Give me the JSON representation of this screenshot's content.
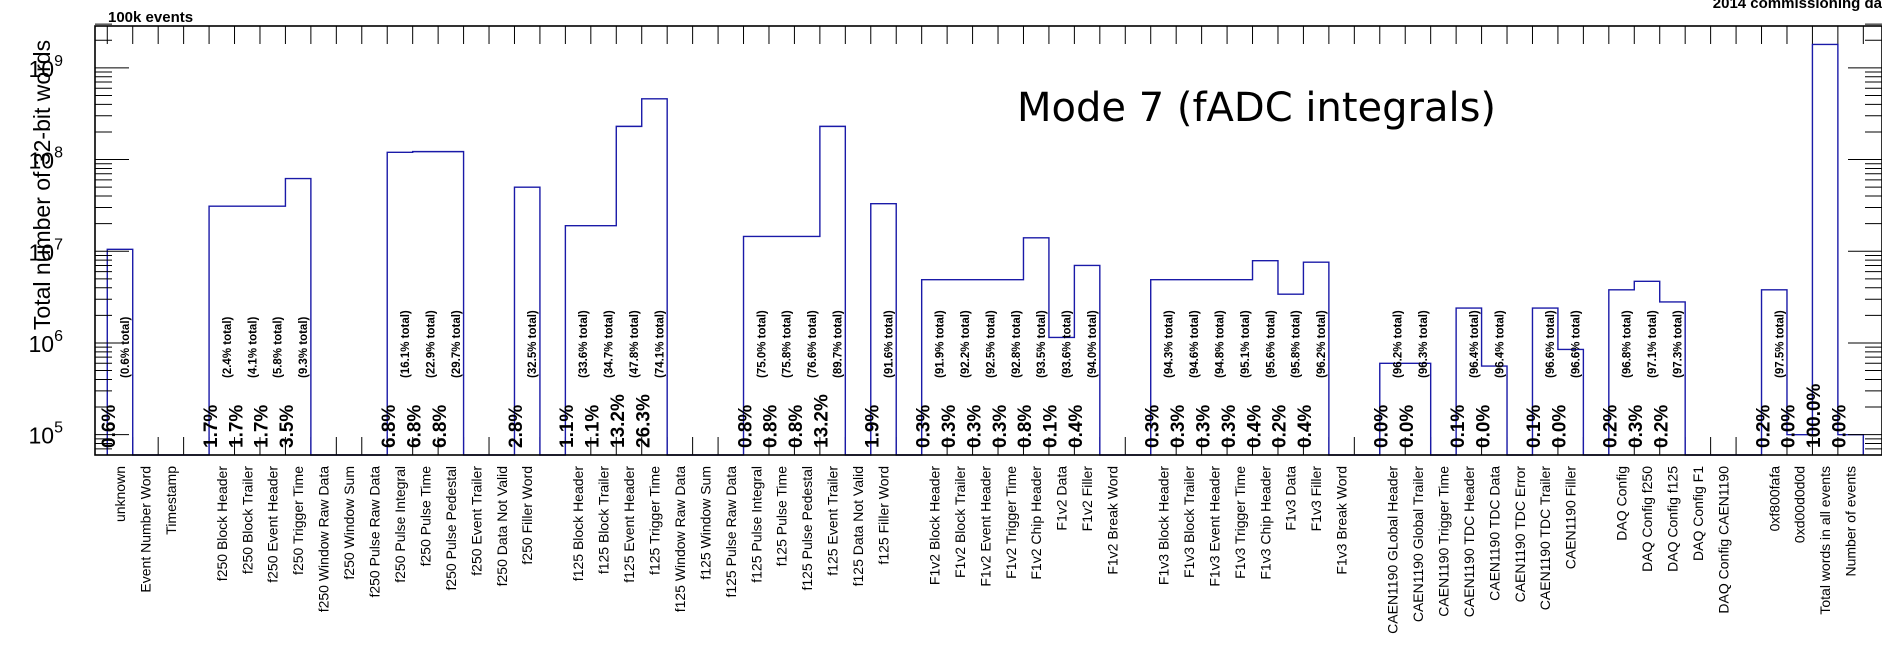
{
  "chart_data": {
    "type": "bar",
    "title": "",
    "header_left": "100k events",
    "header_right": "2014 commissioning da",
    "annotation": "Mode 7 (fADC integrals)",
    "ylabel": "Total number of 32-bit words",
    "ylog": true,
    "ylim": [
      60000,
      3000000000
    ],
    "yticks": [
      {
        "value": 100000,
        "base": "10",
        "exp": "5"
      },
      {
        "value": 1000000,
        "base": "10",
        "exp": "6"
      },
      {
        "value": 10000000,
        "base": "10",
        "exp": "7"
      },
      {
        "value": 100000000,
        "base": "10",
        "exp": "8"
      },
      {
        "value": 1000000000,
        "base": "10",
        "exp": "9"
      }
    ],
    "line_color": "#1a1aa8",
    "categories": [
      "unknown",
      "Event Number Word",
      "Timestamp",
      "",
      "f250 Block Header",
      "f250 Block Trailer",
      "f250 Event Header",
      "f250 Trigger Time",
      "f250 Window Raw Data",
      "f250 Window Sum",
      "f250 Pulse Raw Data",
      "f250 Pulse Integral",
      "f250 Pulse Time",
      "f250 Pulse Pedestal",
      "f250 Event Trailer",
      "f250 Data Not Valid",
      "f250 Filler Word",
      "",
      "f125 Block Header",
      "f125 Block Trailer",
      "f125 Event Header",
      "f125 Trigger Time",
      "f125 Window Raw Data",
      "f125 Window Sum",
      "f125 Pulse Raw Data",
      "f125 Pulse Integral",
      "f125 Pulse Time",
      "f125 Pulse Pedestal",
      "f125 Event Trailer",
      "f125 Data Not Valid",
      "f125 Filler Word",
      "",
      "F1v2 Block Header",
      "F1v2 Block Trailer",
      "F1v2 Event Header",
      "F1v2 Trigger Time",
      "F1v2 Chip Header",
      "F1v2 Data",
      "F1v2 Filler",
      "F1v2 Break Word",
      "",
      "F1v3 Block Header",
      "F1v3 Block Trailer",
      "F1v3 Event Header",
      "F1v3 Trigger Time",
      "F1v3 Chip Header",
      "F1v3 Data",
      "F1v3 Filler",
      "F1v3 Break Word",
      "",
      "CAEN1190 GLobal Header",
      "CAEN1190 Global Trailer",
      "CAEN1190 Trigger Time",
      "CAEN1190 TDC Header",
      "CAEN1190 TDC Data",
      "CAEN1190 TDC Error",
      "CAEN1190 TDC Trailer",
      "CAEN1190 Filler",
      "",
      "DAQ Config",
      "DAQ Config f250",
      "DAQ Config f125",
      "DAQ Config F1",
      "DAQ Config CAEN1190",
      "",
      "0xf800fafa",
      "0xd00d0d0d",
      "Total words in all events",
      "Number of events"
    ],
    "values": [
      10500000,
      0,
      0,
      0,
      31000000,
      31000000,
      31000000,
      62000000,
      0,
      0,
      0,
      120000000,
      122000000,
      122000000,
      0,
      0,
      50000000,
      0,
      19000000,
      19000000,
      230000000,
      460000000,
      0,
      0,
      0,
      14500000,
      14500000,
      14500000,
      230000000,
      0,
      33000000,
      0,
      4900000,
      4900000,
      4900000,
      4900000,
      14000000,
      1150000,
      7000000,
      0,
      0,
      4900000,
      4900000,
      4900000,
      4900000,
      7900000,
      3400000,
      7600000,
      0,
      0,
      600000,
      600000,
      0,
      2400000,
      560000,
      0,
      2400000,
      850000,
      0,
      3800000,
      4700000,
      2800000,
      0,
      0,
      0,
      3800000,
      100000,
      1800000000,
      100000
    ],
    "percents": [
      "0.6%",
      "",
      "",
      "",
      "1.7%",
      "1.7%",
      "1.7%",
      "3.5%",
      "",
      "",
      "",
      "6.8%",
      "6.8%",
      "6.8%",
      "",
      "",
      "2.8%",
      "",
      "1.1%",
      "1.1%",
      "13.2%",
      "26.3%",
      "",
      "",
      "",
      "0.8%",
      "0.8%",
      "0.8%",
      "13.2%",
      "",
      "1.9%",
      "",
      "0.3%",
      "0.3%",
      "0.3%",
      "0.3%",
      "0.8%",
      "0.1%",
      "0.4%",
      "",
      "",
      "0.3%",
      "0.3%",
      "0.3%",
      "0.3%",
      "0.4%",
      "0.2%",
      "0.4%",
      "",
      "",
      "0.0%",
      "0.0%",
      "",
      "0.1%",
      "0.0%",
      "",
      "0.1%",
      "0.0%",
      "",
      "0.2%",
      "0.3%",
      "0.2%",
      "",
      "",
      "",
      "0.2%",
      "0.0%",
      "100.0%",
      "0.0%"
    ],
    "cumulative": [
      "(0.6% total)",
      "",
      "",
      "",
      "(2.4% total)",
      "(4.1% total)",
      "(5.8% total)",
      "(9.3% total)",
      "",
      "",
      "",
      "(16.1% total)",
      "(22.9% total)",
      "(29.7% total)",
      "",
      "",
      "(32.5% total)",
      "",
      "(33.6% total)",
      "(34.7% total)",
      "(47.8% total)",
      "(74.1% total)",
      "",
      "",
      "",
      "(75.0% total)",
      "(75.8% total)",
      "(76.6% total)",
      "(89.7% total)",
      "",
      "(91.6% total)",
      "",
      "(91.9% total)",
      "(92.2% total)",
      "(92.5% total)",
      "(92.8% total)",
      "(93.5% total)",
      "(93.6% total)",
      "(94.0% total)",
      "",
      "",
      "(94.3% total)",
      "(94.6% total)",
      "(94.8% total)",
      "(95.1% total)",
      "(95.6% total)",
      "(95.8% total)",
      "(96.2% total)",
      "",
      "",
      "(96.2% total)",
      "(96.3% total)",
      "",
      "(96.4% total)",
      "(96.4% total)",
      "",
      "(96.6% total)",
      "(96.6% total)",
      "",
      "(96.8% total)",
      "(97.1% total)",
      "(97.3% total)",
      "",
      "",
      "",
      "(97.5% total)",
      "",
      "",
      ""
    ]
  }
}
